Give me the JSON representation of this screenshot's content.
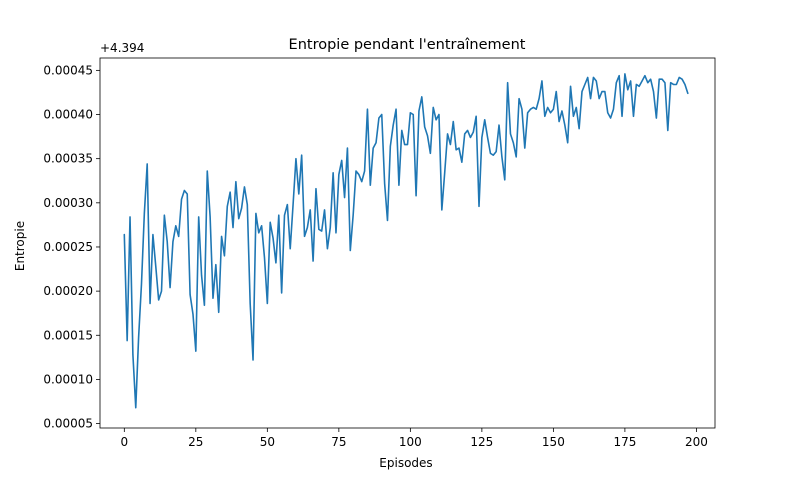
{
  "chart_data": {
    "type": "line",
    "title": "Entropie pendant l'entraînement",
    "xlabel": "Episodes",
    "ylabel": "Entropie",
    "y_offset_label": "+4.394",
    "xlim": [
      -8.5,
      206.5
    ],
    "ylim": [
      4.5e-05,
      0.000464
    ],
    "xticks": [
      0,
      25,
      50,
      75,
      100,
      125,
      150,
      175,
      200
    ],
    "yticks": [
      "0.00005",
      "0.00010",
      "0.00015",
      "0.00020",
      "0.00025",
      "0.00030",
      "0.00035",
      "0.00040",
      "0.00045"
    ],
    "ytick_values": [
      5e-05,
      0.0001,
      0.00015,
      0.0002,
      0.00025,
      0.0003,
      0.00035,
      0.0004,
      0.00045
    ],
    "grid": false,
    "series": [
      {
        "color": "#1f77b4",
        "values": [
          0.000264,
          0.000144,
          0.000284,
          0.000128,
          6.8e-05,
          0.000148,
          0.000208,
          0.000288,
          0.000344,
          0.000186,
          0.000264,
          0.000228,
          0.00019,
          0.0002,
          0.000286,
          0.000256,
          0.000204,
          0.000256,
          0.000274,
          0.000262,
          0.000304,
          0.000314,
          0.00031,
          0.000196,
          0.000174,
          0.000132,
          0.000284,
          0.000218,
          0.000184,
          0.000336,
          0.000284,
          0.000192,
          0.00023,
          0.000176,
          0.000262,
          0.00024,
          0.000296,
          0.000312,
          0.000272,
          0.000324,
          0.000282,
          0.000294,
          0.000318,
          0.000298,
          0.000186,
          0.000122,
          0.000288,
          0.000266,
          0.000274,
          0.000238,
          0.000186,
          0.000278,
          0.00026,
          0.000232,
          0.000286,
          0.000198,
          0.000286,
          0.000298,
          0.000248,
          0.000298,
          0.00035,
          0.00031,
          0.000354,
          0.000262,
          0.000272,
          0.000292,
          0.000234,
          0.000316,
          0.00027,
          0.000268,
          0.000292,
          0.000248,
          0.000272,
          0.000334,
          0.000266,
          0.000332,
          0.000348,
          0.000306,
          0.000362,
          0.000246,
          0.000286,
          0.000336,
          0.000332,
          0.000324,
          0.000336,
          0.000406,
          0.00032,
          0.000362,
          0.000368,
          0.000396,
          0.0004,
          0.000322,
          0.00028,
          0.000364,
          0.000388,
          0.000406,
          0.00032,
          0.000382,
          0.000366,
          0.000366,
          0.000402,
          0.0004,
          0.000308,
          0.000404,
          0.00042,
          0.000386,
          0.000376,
          0.000356,
          0.000408,
          0.000394,
          0.0004,
          0.000292,
          0.000334,
          0.000378,
          0.000366,
          0.000392,
          0.00036,
          0.000362,
          0.000346,
          0.000378,
          0.000382,
          0.000374,
          0.00038,
          0.000398,
          0.000296,
          0.000374,
          0.000394,
          0.000374,
          0.000356,
          0.000354,
          0.000358,
          0.000388,
          0.000352,
          0.000326,
          0.000436,
          0.000378,
          0.000368,
          0.000352,
          0.000418,
          0.000406,
          0.000362,
          0.000402,
          0.000406,
          0.000408,
          0.000406,
          0.000418,
          0.000438,
          0.000398,
          0.000408,
          0.000402,
          0.000406,
          0.000426,
          0.000392,
          0.000404,
          0.000388,
          0.000368,
          0.000432,
          0.000398,
          0.000408,
          0.000384,
          0.000426,
          0.000434,
          0.000442,
          0.000418,
          0.000442,
          0.000438,
          0.000418,
          0.000426,
          0.000426,
          0.000402,
          0.000396,
          0.000406,
          0.000436,
          0.000444,
          0.000398,
          0.000446,
          0.000428,
          0.000438,
          0.000398,
          0.000434,
          0.000432,
          0.000438,
          0.000444,
          0.000436,
          0.00044,
          0.000426,
          0.000396,
          0.00044,
          0.00044,
          0.000436,
          0.000382,
          0.000436,
          0.000434,
          0.000434,
          0.000442,
          0.00044,
          0.000434,
          0.000424
        ]
      }
    ]
  }
}
